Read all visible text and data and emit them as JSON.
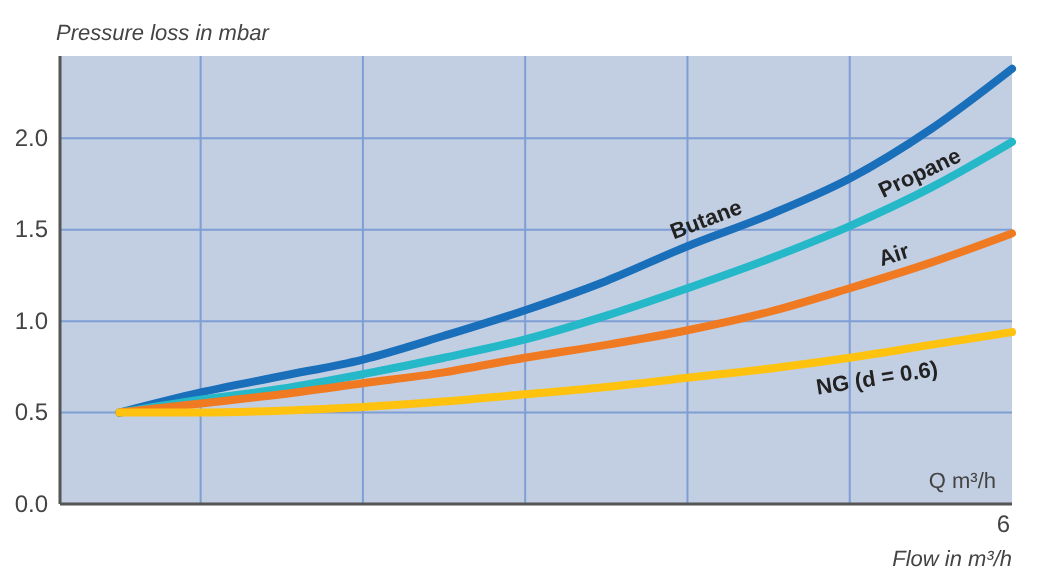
{
  "chart_data": {
    "type": "line",
    "ylabel": "Pressure loss in mbar",
    "xlabel": "Flow in m³/h",
    "categories": [
      null,
      null,
      null,
      null,
      null,
      null,
      null,
      null,
      null,
      null,
      null,
      null
    ],
    "series": [
      {
        "name": "Butane",
        "color": "#1a6fba",
        "values": [
          0.5,
          0.61,
          0.7,
          0.79,
          0.92,
          1.06,
          1.22,
          1.41,
          1.58,
          1.78,
          2.05,
          2.38
        ]
      },
      {
        "name": "Propane",
        "color": "#25b8c8",
        "values": [
          0.5,
          0.57,
          0.63,
          0.71,
          0.8,
          0.9,
          1.03,
          1.18,
          1.34,
          1.52,
          1.73,
          1.98
        ]
      },
      {
        "name": "Air",
        "color": "#f07a22",
        "values": [
          0.5,
          0.55,
          0.6,
          0.66,
          0.72,
          0.8,
          0.87,
          0.95,
          1.05,
          1.18,
          1.32,
          1.48
        ]
      },
      {
        "name": "NG (d = 0.6)",
        "color": "#ffc20e",
        "values": [
          0.5,
          0.5,
          0.51,
          0.53,
          0.56,
          0.6,
          0.64,
          0.69,
          0.74,
          0.8,
          0.87,
          0.94
        ]
      }
    ],
    "ylim": [
      0,
      2.45
    ],
    "yticks": [
      {
        "value": 0,
        "label": "0.0"
      },
      {
        "value": 0.5,
        "label": "0.5"
      },
      {
        "value": 1,
        "label": "1.0"
      },
      {
        "value": 1.5,
        "label": "1.5"
      },
      {
        "value": 2,
        "label": "2.0"
      }
    ],
    "grid": true,
    "legend": false,
    "marker": "none",
    "line_style": "solid",
    "annotations": [
      "Q m³/h",
      "6"
    ]
  }
}
